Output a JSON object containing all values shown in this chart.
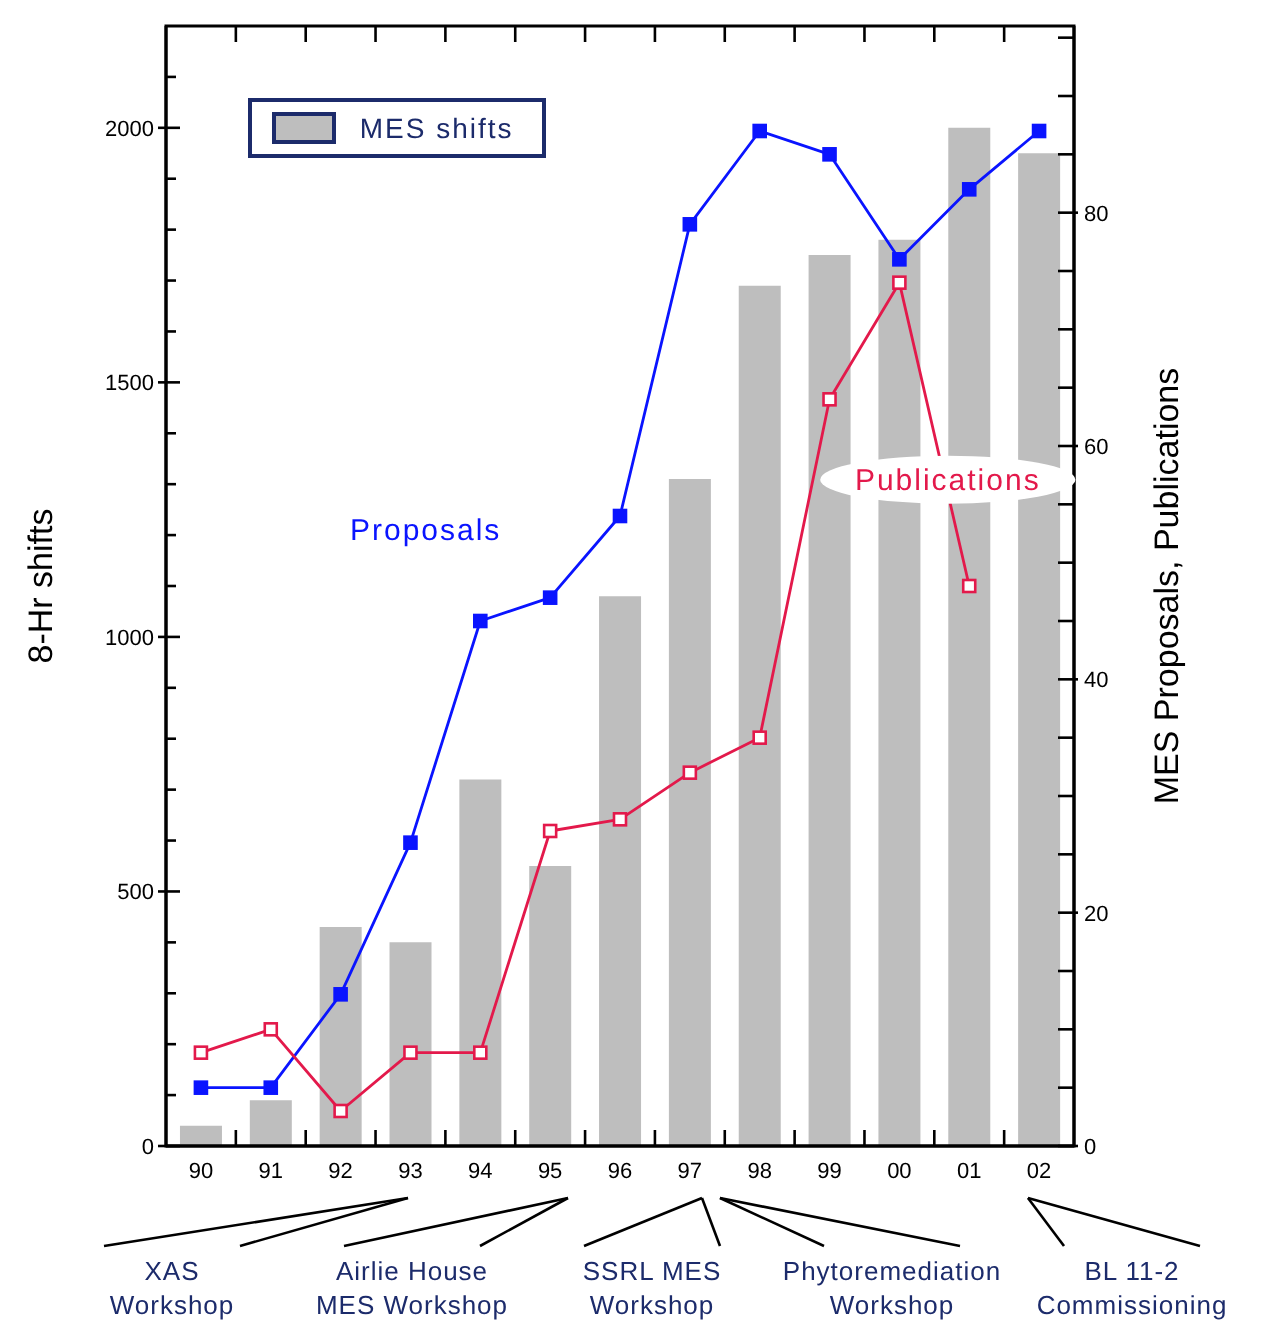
{
  "chart_data": {
    "type": "bar",
    "categories": [
      "90",
      "91",
      "92",
      "93",
      "94",
      "95",
      "96",
      "97",
      "98",
      "99",
      "00",
      "01",
      "02"
    ],
    "series": [
      {
        "name": "MES shifts",
        "color": "#bebebe",
        "values": [
          40,
          90,
          430,
          400,
          720,
          550,
          1080,
          1310,
          1690,
          1750,
          1780,
          2000,
          1950
        ]
      },
      {
        "name": "Proposals",
        "type": "line",
        "axis": "y2",
        "color": "#0a14ff",
        "values": [
          5,
          5,
          13,
          26,
          45,
          47,
          54,
          79,
          87,
          85,
          76,
          82,
          87
        ]
      },
      {
        "name": "Publications",
        "type": "line",
        "axis": "y2",
        "color": "#e3194b",
        "values": [
          8,
          10,
          3,
          8,
          8,
          27,
          28,
          32,
          35,
          64,
          74,
          48,
          null
        ]
      }
    ],
    "ylabel": "8-Hr shifts",
    "y2label": "MES Proposals, Publications",
    "ylim": [
      0,
      2200
    ],
    "yticks": [
      0,
      {
        "value": 100,
        "label": null
      },
      {
        "value": 200,
        "label": null
      },
      {
        "value": 300,
        "label": null
      },
      {
        "value": 400,
        "label": null
      },
      500,
      {
        "value": 600,
        "label": null
      },
      {
        "value": 700,
        "label": null
      },
      {
        "value": 800,
        "label": null
      },
      {
        "value": 900,
        "label": null
      },
      1000,
      {
        "value": 1100,
        "label": null
      },
      {
        "value": 1200,
        "label": null
      },
      {
        "value": 1300,
        "label": null
      },
      {
        "value": 1400,
        "label": null
      },
      1500,
      {
        "value": 1600,
        "label": null
      },
      {
        "value": 1700,
        "label": null
      },
      {
        "value": 1800,
        "label": null
      },
      {
        "value": 1900,
        "label": null
      },
      2000,
      {
        "value": 2100,
        "label": null
      }
    ],
    "y2lim": [
      0,
      96
    ],
    "y2ticks": [
      0,
      {
        "value": 5,
        "label": null
      },
      {
        "value": 10,
        "label": null
      },
      {
        "value": 15,
        "label": null
      },
      20,
      {
        "value": 25,
        "label": null
      },
      {
        "value": 30,
        "label": null
      },
      {
        "value": 35,
        "label": null
      },
      40,
      {
        "value": 45,
        "label": null
      },
      {
        "value": 50,
        "label": null
      },
      {
        "value": 55,
        "label": null
      },
      60,
      {
        "value": 65,
        "label": null
      },
      {
        "value": 70,
        "label": null
      },
      {
        "value": 75,
        "label": null
      },
      80,
      {
        "value": 85,
        "label": null
      },
      {
        "value": 90,
        "label": null
      },
      {
        "value": 95,
        "label": null
      }
    ],
    "legend": "top left",
    "marker": "square",
    "annotations": [
      "XAS Workshop",
      "Airlie House MES Workshop",
      "SSRL MES Workshop",
      "Phytoremediation Workshop",
      "BL 11-2 Commissioning"
    ]
  }
}
